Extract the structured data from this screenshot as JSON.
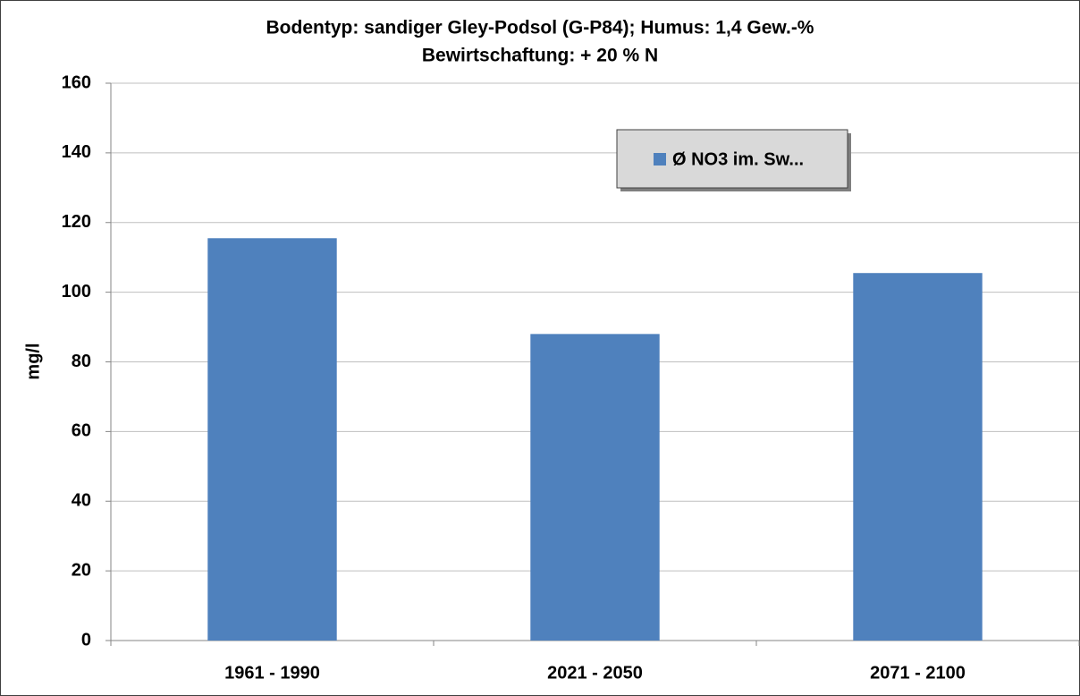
{
  "chart_data": {
    "type": "bar",
    "title": "Bodentyp: sandiger Gley-Podsol (G-P84); Humus: 1,4 Gew.-%",
    "subtitle": "Bewirtschaftung: + 20 % N",
    "y_label": "mg/l",
    "categories": [
      "1961 - 1990",
      "2021 - 2050",
      "2071 - 2100"
    ],
    "series": [
      {
        "name": "Ø NO3 im. Sw...",
        "color": "#4f81bd",
        "values": [
          115.5,
          88,
          105.5
        ]
      }
    ],
    "ylim": [
      0,
      160
    ],
    "yticks": [
      0,
      20,
      40,
      60,
      80,
      100,
      120,
      140,
      160
    ],
    "grid": true,
    "legend": "top-right"
  }
}
